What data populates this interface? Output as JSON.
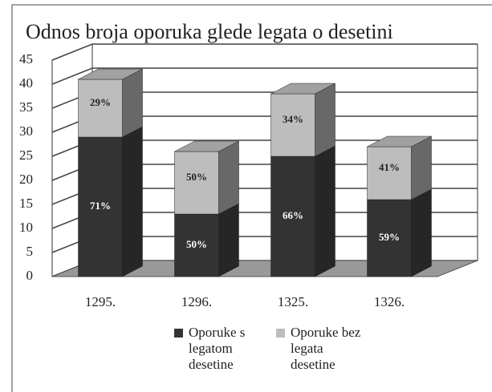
{
  "chart_data": {
    "type": "bar3d_stacked",
    "title": "Odnos broja oporuka glede legata o desetini",
    "categories": [
      "1295.",
      "1296.",
      "1325.",
      "1326."
    ],
    "series": [
      {
        "name": "Oporuke s legatom desetine",
        "color": "#333333",
        "values": [
          29,
          13,
          25,
          16
        ],
        "data_labels": [
          "71%",
          "50%",
          "66%",
          "59%"
        ]
      },
      {
        "name": "Oporuke bez legata desetine",
        "color": "#bdbdbd",
        "values": [
          12,
          13,
          13,
          11
        ],
        "data_labels": [
          "29%",
          "50%",
          "34%",
          "41%"
        ]
      }
    ],
    "ylim": [
      0,
      45
    ],
    "yticks": [
      0,
      5,
      10,
      15,
      20,
      25,
      30,
      35,
      40,
      45
    ],
    "grid": true
  }
}
